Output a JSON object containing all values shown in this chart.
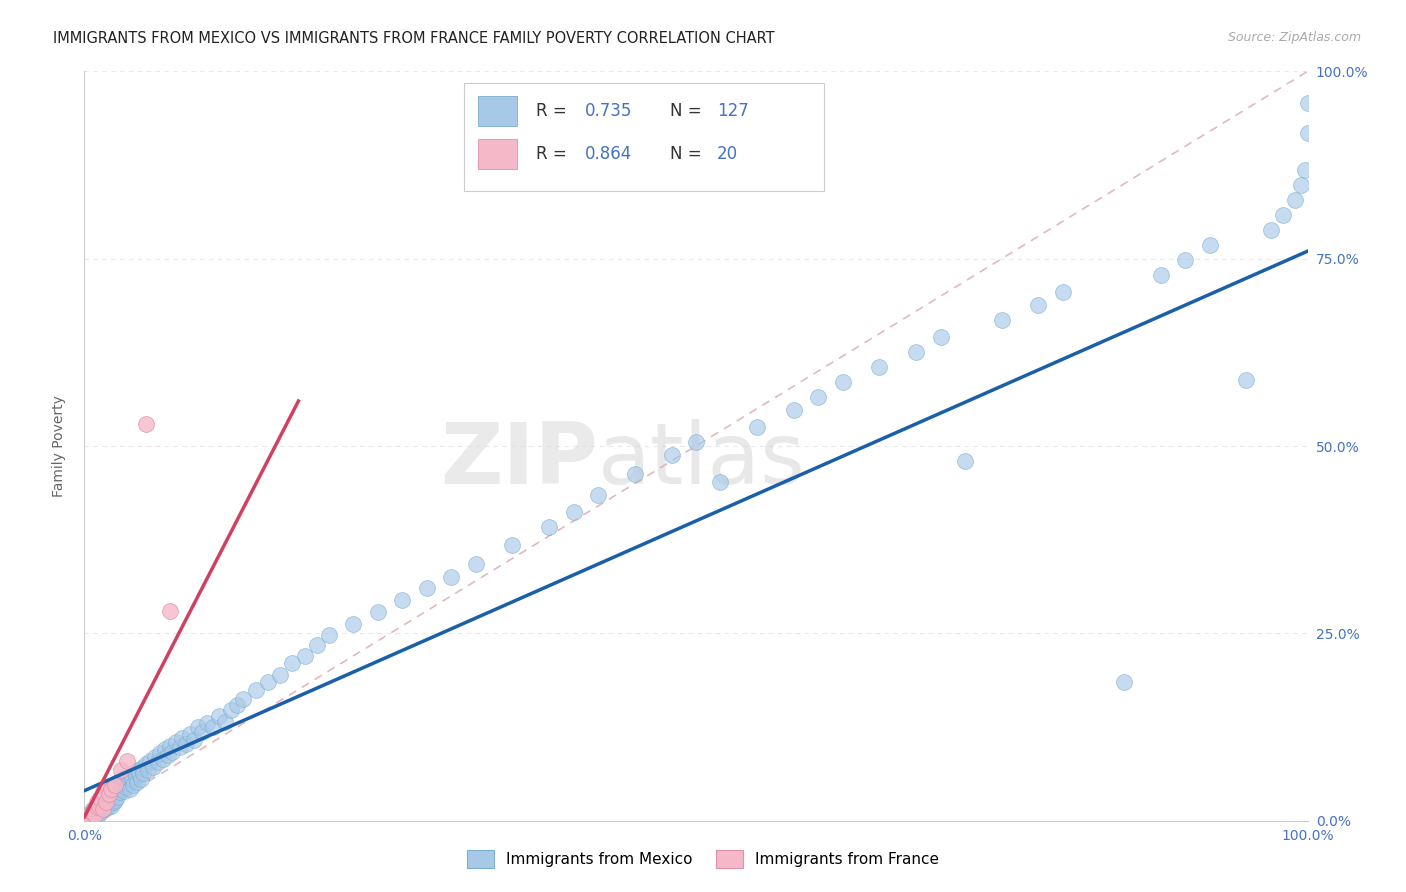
{
  "title": "IMMIGRANTS FROM MEXICO VS IMMIGRANTS FROM FRANCE FAMILY POVERTY CORRELATION CHART",
  "source": "Source: ZipAtlas.com",
  "ylabel": "Family Poverty",
  "xlim": [
    0,
    1
  ],
  "ylim": [
    0,
    1
  ],
  "mexico_R": 0.735,
  "mexico_N": 127,
  "france_R": 0.864,
  "france_N": 20,
  "mexico_color_face": "#a8c8e8",
  "mexico_color_edge": "#7aafd0",
  "france_color_face": "#f5b8c8",
  "france_color_edge": "#e090a8",
  "mexico_line_color": "#1a5fa8",
  "france_line_color": "#d04060",
  "ref_line_color": "#e0b0b8",
  "axis_tick_color": "#4472c4",
  "background_color": "#ffffff",
  "grid_color": "#e8e8e8",
  "title_fontsize": 10.5,
  "source_fontsize": 9,
  "axis_label_fontsize": 10,
  "tick_fontsize": 10,
  "legend_fontsize": 12,
  "mexico_x": [
    0.005,
    0.007,
    0.008,
    0.009,
    0.01,
    0.01,
    0.011,
    0.012,
    0.013,
    0.014,
    0.015,
    0.015,
    0.016,
    0.016,
    0.017,
    0.017,
    0.018,
    0.018,
    0.019,
    0.02,
    0.02,
    0.021,
    0.021,
    0.022,
    0.022,
    0.023,
    0.023,
    0.024,
    0.024,
    0.025,
    0.025,
    0.026,
    0.026,
    0.027,
    0.028,
    0.029,
    0.03,
    0.03,
    0.031,
    0.032,
    0.033,
    0.034,
    0.035,
    0.036,
    0.037,
    0.038,
    0.039,
    0.04,
    0.041,
    0.042,
    0.043,
    0.044,
    0.045,
    0.046,
    0.047,
    0.048,
    0.05,
    0.052,
    0.054,
    0.056,
    0.058,
    0.06,
    0.062,
    0.064,
    0.066,
    0.068,
    0.07,
    0.072,
    0.075,
    0.078,
    0.08,
    0.083,
    0.086,
    0.09,
    0.093,
    0.096,
    0.1,
    0.105,
    0.11,
    0.115,
    0.12,
    0.125,
    0.13,
    0.14,
    0.15,
    0.16,
    0.17,
    0.18,
    0.19,
    0.2,
    0.22,
    0.24,
    0.26,
    0.28,
    0.3,
    0.32,
    0.35,
    0.38,
    0.4,
    0.42,
    0.45,
    0.48,
    0.5,
    0.52,
    0.55,
    0.58,
    0.6,
    0.62,
    0.65,
    0.68,
    0.7,
    0.72,
    0.75,
    0.78,
    0.8,
    0.85,
    0.88,
    0.9,
    0.92,
    0.95,
    0.97,
    0.98,
    0.99,
    0.995,
    0.998,
    1.0,
    1.0
  ],
  "mexico_y": [
    0.01,
    0.015,
    0.008,
    0.012,
    0.018,
    0.005,
    0.02,
    0.015,
    0.022,
    0.012,
    0.025,
    0.018,
    0.02,
    0.03,
    0.015,
    0.025,
    0.022,
    0.035,
    0.018,
    0.03,
    0.04,
    0.025,
    0.035,
    0.02,
    0.042,
    0.03,
    0.038,
    0.025,
    0.045,
    0.035,
    0.028,
    0.04,
    0.05,
    0.032,
    0.045,
    0.038,
    0.042,
    0.055,
    0.048,
    0.04,
    0.052,
    0.045,
    0.058,
    0.05,
    0.042,
    0.06,
    0.055,
    0.048,
    0.065,
    0.058,
    0.052,
    0.068,
    0.062,
    0.055,
    0.07,
    0.064,
    0.075,
    0.068,
    0.08,
    0.072,
    0.085,
    0.078,
    0.09,
    0.082,
    0.095,
    0.088,
    0.1,
    0.092,
    0.105,
    0.098,
    0.11,
    0.102,
    0.115,
    0.108,
    0.125,
    0.118,
    0.13,
    0.125,
    0.14,
    0.132,
    0.148,
    0.155,
    0.162,
    0.175,
    0.185,
    0.195,
    0.21,
    0.22,
    0.235,
    0.248,
    0.262,
    0.278,
    0.295,
    0.31,
    0.325,
    0.342,
    0.368,
    0.392,
    0.412,
    0.435,
    0.462,
    0.488,
    0.505,
    0.452,
    0.525,
    0.548,
    0.565,
    0.585,
    0.605,
    0.625,
    0.645,
    0.48,
    0.668,
    0.688,
    0.705,
    0.185,
    0.728,
    0.748,
    0.768,
    0.588,
    0.788,
    0.808,
    0.828,
    0.848,
    0.868,
    0.918,
    0.958
  ],
  "france_x": [
    0.004,
    0.005,
    0.006,
    0.007,
    0.008,
    0.009,
    0.01,
    0.01,
    0.012,
    0.013,
    0.015,
    0.015,
    0.018,
    0.02,
    0.022,
    0.025,
    0.03,
    0.035,
    0.05,
    0.07
  ],
  "france_y": [
    0.008,
    0.005,
    0.012,
    0.01,
    0.015,
    0.008,
    0.018,
    0.025,
    0.02,
    0.03,
    0.015,
    0.038,
    0.025,
    0.035,
    0.042,
    0.048,
    0.068,
    0.08,
    0.53,
    0.28
  ],
  "mexico_line_x": [
    0.0,
    1.0
  ],
  "mexico_line_y": [
    0.04,
    0.76
  ],
  "france_line_x": [
    0.0,
    0.175
  ],
  "france_line_y": [
    0.005,
    0.56
  ]
}
